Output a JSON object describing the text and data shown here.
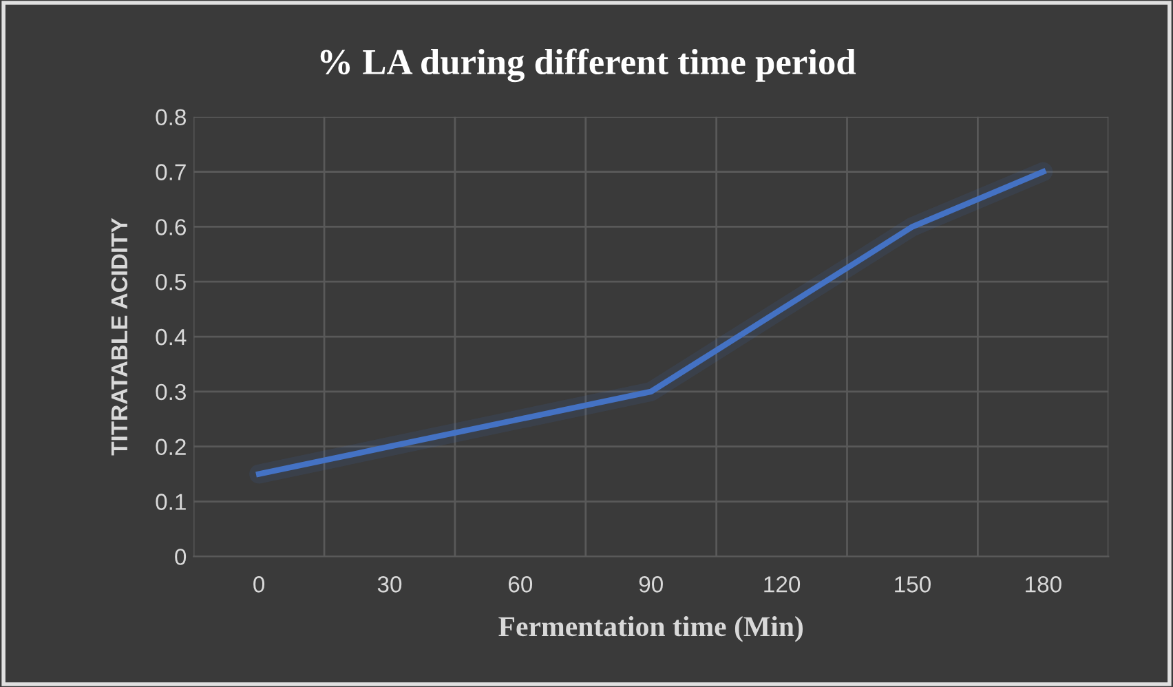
{
  "chart_data": {
    "type": "line",
    "title": "% LA during different time period",
    "xlabel": "Fermentation time (Min)",
    "ylabel": "TITRATABLE ACIDITY",
    "categories": [
      "0",
      "30",
      "60",
      "90",
      "120",
      "150",
      "180"
    ],
    "series": [
      {
        "color": "#4472c4",
        "values": [
          0.15,
          0.2,
          0.25,
          0.3,
          0.45,
          0.6,
          0.7
        ]
      }
    ],
    "ylim": [
      0,
      0.8
    ],
    "yticks": [
      0,
      0.1,
      0.2,
      0.3,
      0.4,
      0.5,
      0.6,
      0.7,
      0.8
    ],
    "grid": true,
    "marker": "none",
    "line_style": "solid"
  }
}
